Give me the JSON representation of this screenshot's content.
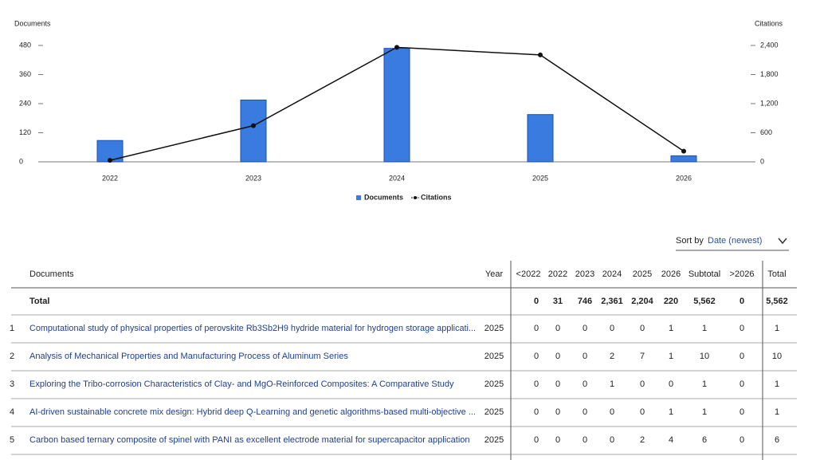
{
  "chart_data": {
    "type": "bar-line",
    "y_axis_label": "Documents",
    "y2_axis_label": "Citations",
    "categories": [
      "2022",
      "2023",
      "2024",
      "2025",
      "2026"
    ],
    "series": [
      {
        "name": "Documents",
        "type": "bar",
        "color": "#3a7be0",
        "values": [
          88,
          255,
          468,
          195,
          25
        ]
      },
      {
        "name": "Citations",
        "type": "line",
        "axis": "y2",
        "color": "#111111",
        "values": [
          31,
          746,
          2361,
          2204,
          220
        ]
      }
    ],
    "ylim": [
      0,
      480
    ],
    "yticks": [
      0,
      120,
      240,
      360,
      480
    ],
    "y2lim": [
      0,
      2400
    ],
    "y2ticks": [
      0,
      600,
      {
        "value": 1200,
        "label": "1,200"
      },
      {
        "value": 1800,
        "label": "1,800"
      },
      {
        "value": 2400,
        "label": "2,400"
      }
    ],
    "legend": "bottom"
  },
  "sort": {
    "label": "Sort by",
    "value": "Date (newest)"
  },
  "table": {
    "columns": [
      "Documents",
      "Year",
      "<2022",
      "2022",
      "2023",
      "2024",
      "2025",
      "2026",
      "Subtotal",
      ">2026",
      "Total"
    ],
    "total": {
      "label": "Total",
      "cells": [
        "0",
        "31",
        "746",
        "2,361",
        "2,204",
        "220",
        "5,562",
        "0",
        "5,562"
      ]
    },
    "rows": [
      {
        "rank": "1",
        "title": "Computational study of physical properties of perovskite Rb3Sb2H9 hydride material for hydrogen storage applicati...",
        "year": "2025",
        "cells": [
          "0",
          "0",
          "0",
          "0",
          "0",
          "1",
          "1",
          "0",
          "1"
        ]
      },
      {
        "rank": "2",
        "title": "Analysis of Mechanical Properties and Manufacturing Process of Aluminum Series",
        "year": "2025",
        "cells": [
          "0",
          "0",
          "0",
          "2",
          "7",
          "1",
          "10",
          "0",
          "10"
        ]
      },
      {
        "rank": "3",
        "title": "Exploring the Tribo-corrosion Characteristics of Clay- and MgO-Reinforced Composites: A Comparative Study",
        "year": "2025",
        "cells": [
          "0",
          "0",
          "0",
          "1",
          "0",
          "0",
          "1",
          "0",
          "1"
        ]
      },
      {
        "rank": "4",
        "title": "AI-driven sustainable concrete mix design: Hybrid deep Q-Learning and genetic algorithms-based multi-objective ...",
        "year": "2025",
        "cells": [
          "0",
          "0",
          "0",
          "0",
          "0",
          "1",
          "1",
          "0",
          "1"
        ]
      },
      {
        "rank": "5",
        "title": "Carbon based ternary composite of spinel with PANI as excellent electrode material for supercapacitor application",
        "year": "2025",
        "cells": [
          "0",
          "0",
          "0",
          "0",
          "2",
          "4",
          "6",
          "0",
          "6"
        ]
      }
    ]
  }
}
